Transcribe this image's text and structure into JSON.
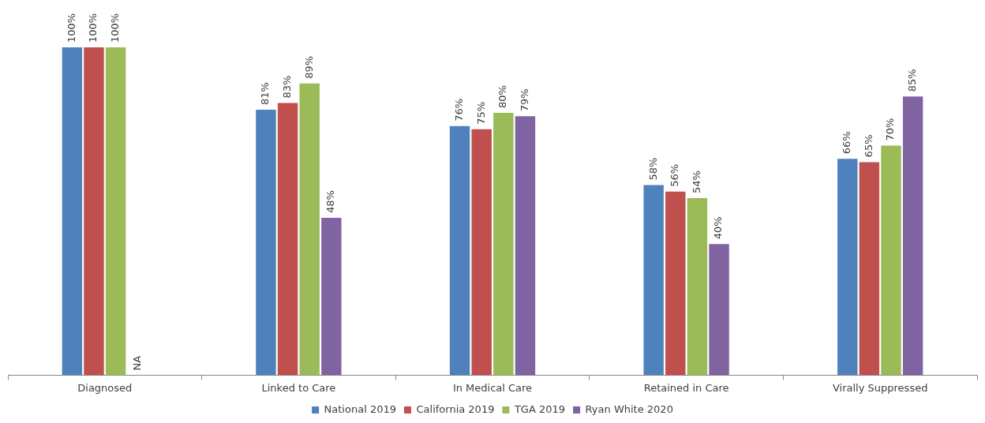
{
  "chart_data": {
    "type": "bar",
    "categories": [
      "Diagnosed",
      "Linked to Care",
      "In Medical Care",
      "Retained in Care",
      "Virally Suppressed"
    ],
    "series": [
      {
        "name": "National 2019",
        "color": "#4f81bd",
        "values": [
          100,
          81,
          76,
          58,
          66
        ],
        "value_labels": [
          "100%",
          "81%",
          "76%",
          "58%",
          "66%"
        ]
      },
      {
        "name": "California 2019",
        "color": "#c0504d",
        "values": [
          100,
          83,
          75,
          56,
          65
        ],
        "value_labels": [
          "100%",
          "83%",
          "75%",
          "56%",
          "65%"
        ]
      },
      {
        "name": "TGA 2019",
        "color": "#9bbb59",
        "values": [
          100,
          89,
          80,
          54,
          70
        ],
        "value_labels": [
          "100%",
          "89%",
          "80%",
          "54%",
          "70%"
        ]
      },
      {
        "name": "Ryan White 2020",
        "color": "#8064a2",
        "values": [
          null,
          48,
          79,
          40,
          85
        ],
        "value_labels": [
          "NA",
          "48%",
          "79%",
          "40%",
          "85%"
        ]
      }
    ],
    "legend": "bottom",
    "tick_labels": "x",
    "grid": false
  }
}
